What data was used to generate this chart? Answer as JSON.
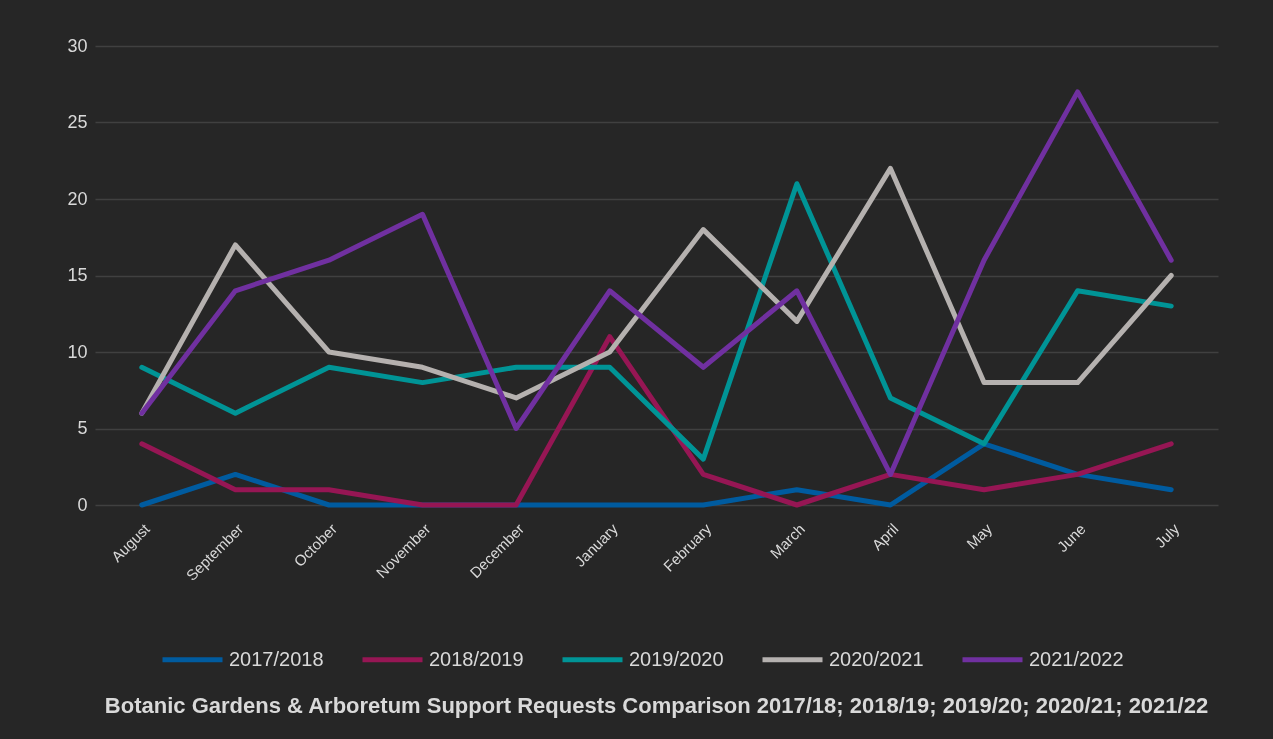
{
  "chart_data": {
    "type": "line",
    "title": "Botanic Gardens & Arboretum Support Requests Comparison 2017/18; 2018/19; 2019/20; 2020/21; 2021/22",
    "categories": [
      "August",
      "September",
      "October",
      "November",
      "December",
      "January",
      "February",
      "March",
      "April",
      "May",
      "June",
      "July"
    ],
    "series": [
      {
        "name": "2017/2018",
        "color": "#005b9f",
        "values": [
          0,
          2,
          0,
          0,
          0,
          0,
          0,
          1,
          0,
          4,
          2,
          1
        ]
      },
      {
        "name": "2018/2019",
        "color": "#961654",
        "values": [
          4,
          1,
          1,
          0,
          0,
          11,
          2,
          0,
          2,
          1,
          2,
          4
        ]
      },
      {
        "name": "2019/2020",
        "color": "#009496",
        "values": [
          9,
          6,
          9,
          8,
          9,
          9,
          3,
          21,
          7,
          4,
          14,
          13
        ]
      },
      {
        "name": "2020/2021",
        "color": "#b5b1af",
        "values": [
          6,
          17,
          10,
          9,
          7,
          10,
          18,
          12,
          22,
          8,
          8,
          15
        ]
      },
      {
        "name": "2021/2022",
        "color": "#7030a0",
        "values": [
          6,
          14,
          16,
          19,
          5,
          14,
          9,
          14,
          2,
          16,
          27,
          16
        ]
      }
    ],
    "ylim": [
      0,
      30
    ],
    "yticks": [
      0,
      5,
      10,
      15,
      20,
      25,
      30
    ],
    "grid": "y",
    "legend": "bottom",
    "marker": "none",
    "line_style": "solid"
  }
}
